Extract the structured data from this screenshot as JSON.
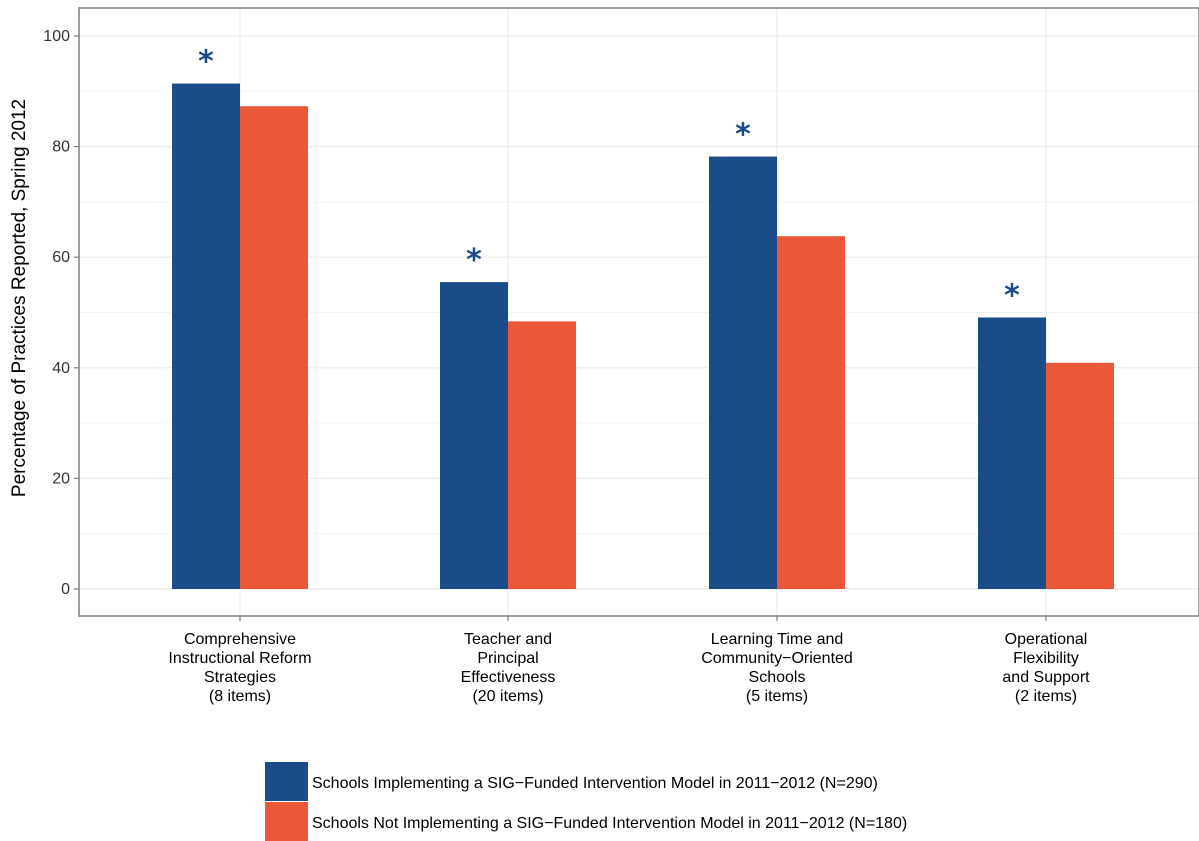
{
  "colors": {
    "series1": "#1a4c8a",
    "series2": "#ea5838",
    "grid": "#ebebeb",
    "panel_border": "#7f7f7f"
  },
  "chart_data": {
    "type": "bar",
    "ylabel": "Percentage of Practices Reported, Spring 2012",
    "xlabel": "",
    "ylim": [
      0,
      105
    ],
    "yticks": [
      "0",
      "20",
      "40",
      "60",
      "80",
      "100"
    ],
    "grid": true,
    "legend_position": "bottom",
    "categories": [
      [
        "Comprehensive",
        "Instructional Reform",
        "Strategies",
        "(8 items)"
      ],
      [
        "Teacher and",
        "Principal",
        "Effectiveness",
        "(20 items)"
      ],
      [
        "Learning Time and",
        "Community−Oriented",
        "Schools",
        "(5 items)"
      ],
      [
        "Operational",
        "Flexibility",
        "and Support",
        "(2 items)"
      ]
    ],
    "series": [
      {
        "name": "Schools Implementing a SIG−Funded Intervention Model in 2011−2012 (N=290)",
        "values": [
          91.4,
          55.5,
          78.2,
          49.1
        ]
      },
      {
        "name": "Schools Not Implementing a SIG−Funded Intervention Model in 2011−2012 (N=180)",
        "values": [
          87.3,
          48.4,
          63.8,
          40.9
        ]
      }
    ],
    "annotations": [
      {
        "text": "*",
        "category": 0,
        "series": 0
      },
      {
        "text": "*",
        "category": 1,
        "series": 0
      },
      {
        "text": "*",
        "category": 2,
        "series": 0
      },
      {
        "text": "*",
        "category": 3,
        "series": 0
      }
    ]
  }
}
